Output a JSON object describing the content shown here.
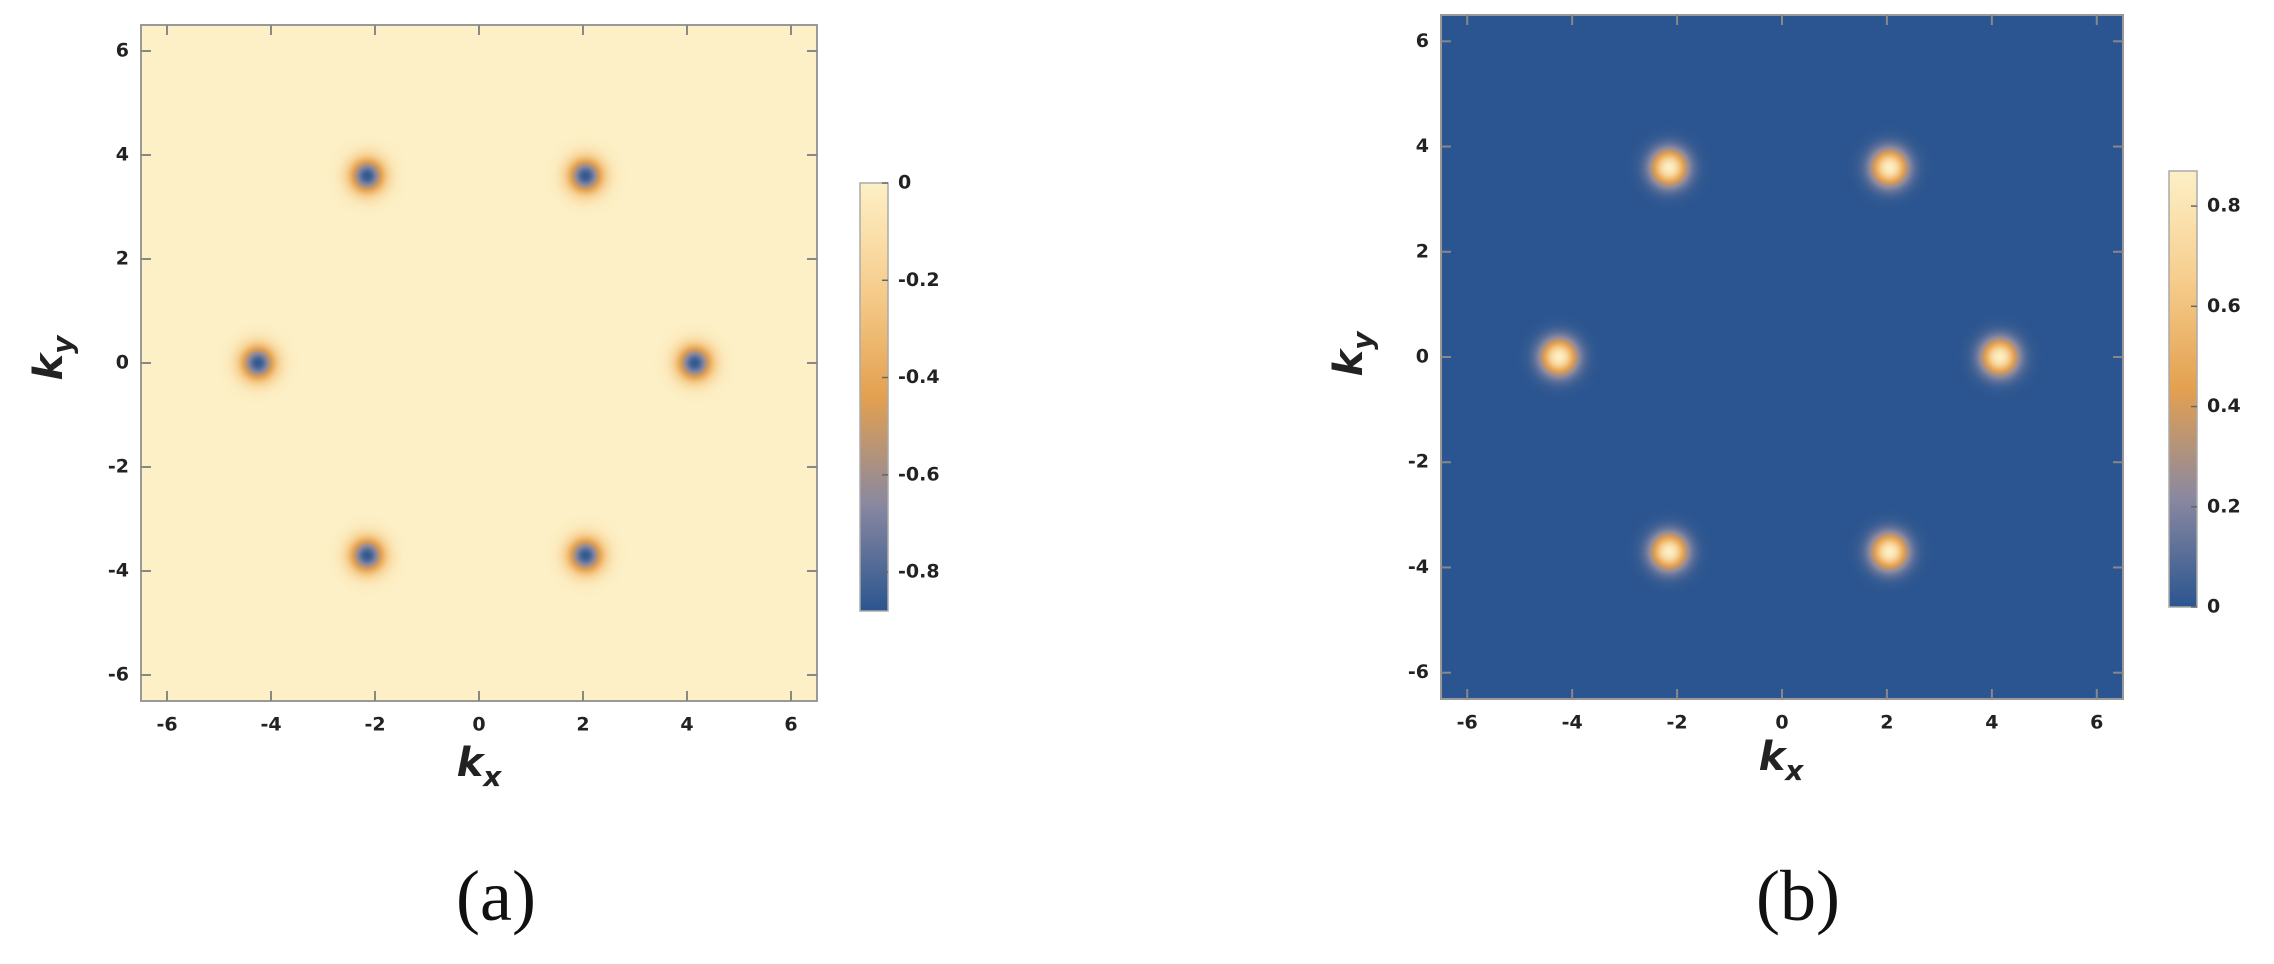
{
  "chart_data": [
    {
      "type": "density",
      "caption": "(a)",
      "xlabel": [
        "k",
        "x"
      ],
      "ylabel": [
        "k",
        "y"
      ],
      "xlim": [
        -6.5,
        6.5
      ],
      "ylim": [
        -6.5,
        6.5
      ],
      "xticks": [
        -6,
        -4,
        -2,
        0,
        2,
        4,
        6
      ],
      "yticks": [
        -6,
        -4,
        -2,
        0,
        2,
        4,
        6
      ],
      "colormap": [
        "#2b5590",
        "#8a88a0",
        "#e3a04f",
        "#f6cd8d",
        "#fdf0c6"
      ],
      "clim": [
        -0.88,
        0
      ],
      "cticks": [
        0,
        -0.2,
        -0.4,
        -0.6,
        -0.8
      ],
      "peaks": {
        "x": [
          -2.15,
          2.05,
          -4.25,
          4.15,
          -2.15,
          2.05
        ],
        "y": [
          3.6,
          3.6,
          0,
          0,
          -3.7,
          -3.7
        ],
        "values": [
          -0.87,
          -0.87,
          -0.87,
          -0.87,
          -0.87,
          -0.87
        ]
      }
    },
    {
      "type": "density",
      "caption": "(b)",
      "xlabel": [
        "k",
        "x"
      ],
      "ylabel": [
        "k",
        "y"
      ],
      "xlim": [
        -6.5,
        6.5
      ],
      "ylim": [
        -6.5,
        6.5
      ],
      "xticks": [
        -6,
        -4,
        -2,
        0,
        2,
        4,
        6
      ],
      "yticks": [
        -6,
        -4,
        -2,
        0,
        2,
        4,
        6
      ],
      "colormap": [
        "#2b5590",
        "#8a88a0",
        "#e3a04f",
        "#f6cd8d",
        "#fdf0c6"
      ],
      "clim": [
        0,
        0.87
      ],
      "cticks": [
        0,
        0.2,
        0.4,
        0.6,
        0.8
      ],
      "peaks": {
        "x": [
          -2.15,
          2.05,
          -4.25,
          4.15,
          -2.15,
          2.05
        ],
        "y": [
          3.6,
          3.6,
          0,
          0,
          -3.7,
          -3.7
        ],
        "values": [
          0.87,
          0.87,
          0.87,
          0.87,
          0.87,
          0.87
        ]
      }
    }
  ]
}
